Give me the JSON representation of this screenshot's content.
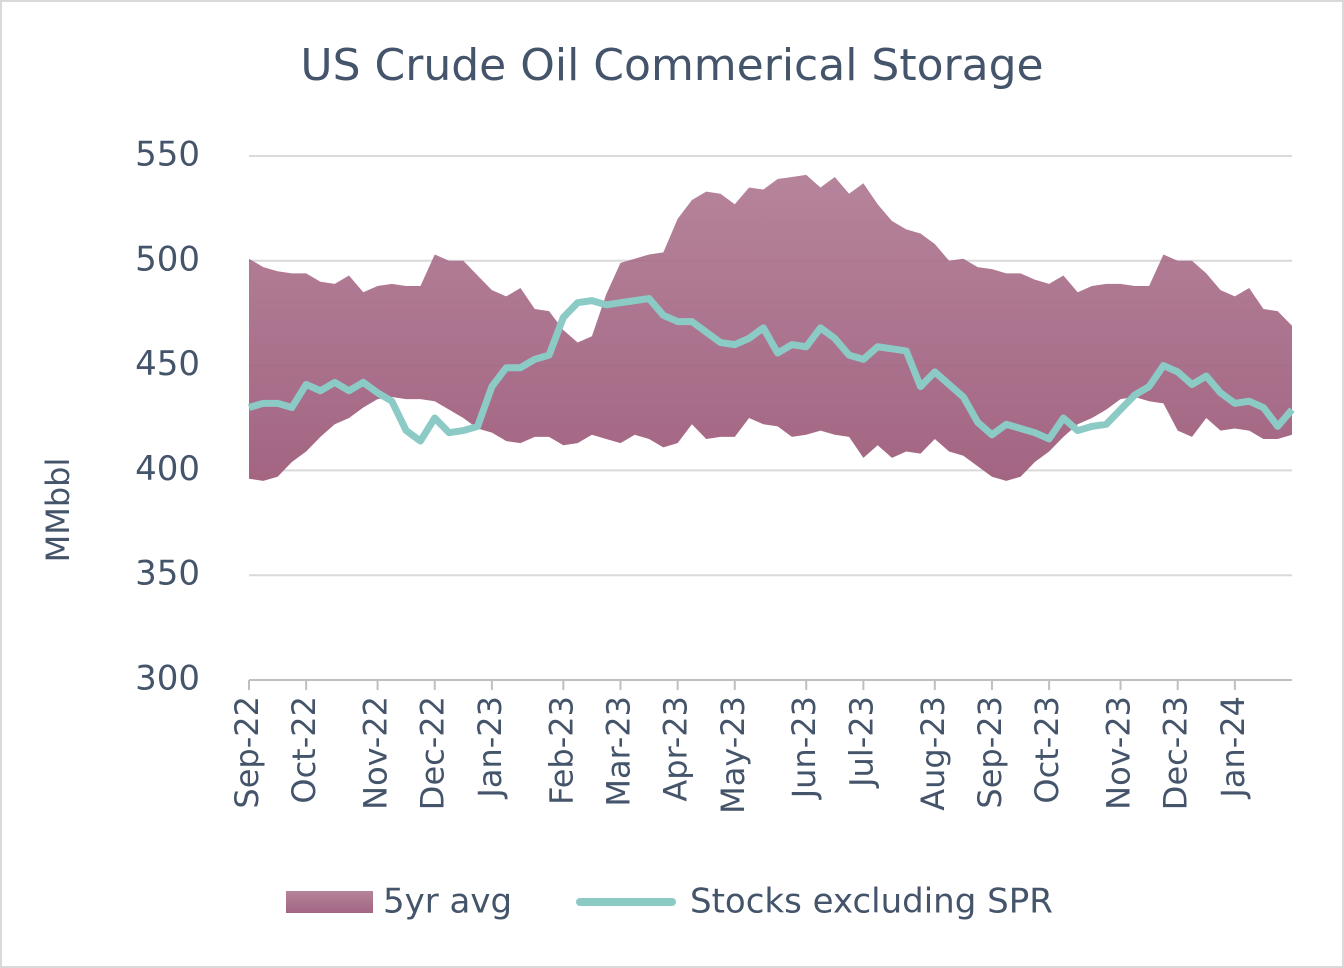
{
  "chart_data": {
    "type": "line",
    "title": "US Crude Oil Commerical Storage",
    "y_label": "MMbbl",
    "categories": [
      "Sep-22",
      null,
      null,
      null,
      "Oct-22",
      null,
      null,
      null,
      null,
      "Nov-22",
      null,
      null,
      null,
      "Dec-22",
      null,
      null,
      null,
      "Jan-23",
      null,
      null,
      null,
      null,
      "Feb-23",
      null,
      null,
      null,
      "Mar-23",
      null,
      null,
      null,
      "Apr-23",
      null,
      null,
      null,
      "May-23",
      null,
      null,
      null,
      null,
      "Jun-23",
      null,
      null,
      null,
      "Jul-23",
      null,
      null,
      null,
      null,
      "Aug-23",
      null,
      null,
      null,
      "Sep-23",
      null,
      null,
      null,
      "Oct-23",
      null,
      null,
      null,
      null,
      "Nov-23",
      null,
      null,
      null,
      "Dec-23",
      null,
      null,
      null,
      "Jan-24",
      null,
      null,
      null,
      null
    ],
    "band": {
      "name": "5yr avg",
      "color": "#a36582",
      "upper": [
        501,
        497,
        495,
        494,
        494,
        490,
        489,
        493,
        485,
        488,
        489,
        488,
        488,
        503,
        500,
        500,
        493,
        486,
        483,
        487,
        477,
        476,
        467,
        461,
        464,
        484,
        499,
        501,
        503,
        504,
        520,
        529,
        533,
        532,
        527,
        535,
        534,
        539,
        540,
        541,
        535,
        540,
        532,
        537,
        527,
        519,
        515,
        513,
        508,
        500,
        501,
        497,
        496,
        494,
        494,
        491,
        489,
        493,
        485,
        488,
        489,
        489,
        488,
        488,
        503,
        500,
        500,
        494,
        486,
        483,
        487,
        477,
        476,
        469
      ],
      "lower": [
        396,
        395,
        397,
        404,
        409,
        416,
        422,
        425,
        430,
        434,
        435,
        434,
        434,
        433,
        429,
        425,
        420,
        418,
        414,
        413,
        416,
        416,
        412,
        413,
        417,
        415,
        413,
        417,
        415,
        411,
        413,
        422,
        415,
        416,
        416,
        425,
        422,
        421,
        416,
        417,
        419,
        417,
        416,
        406,
        412,
        406,
        409,
        408,
        415,
        409,
        407,
        402,
        397,
        395,
        397,
        404,
        409,
        416,
        422,
        425,
        429,
        434,
        435,
        433,
        432,
        419,
        416,
        425,
        419,
        420,
        419,
        415,
        415,
        417
      ]
    },
    "series": [
      {
        "name": "Stocks excluding SPR",
        "color": "#8ccac6",
        "values": [
          430,
          432,
          432,
          430,
          441,
          438,
          442,
          438,
          442,
          437,
          433,
          419,
          414,
          425,
          418,
          419,
          421,
          440,
          449,
          449,
          453,
          455,
          473,
          480,
          481,
          479,
          480,
          481,
          482,
          474,
          471,
          471,
          466,
          461,
          460,
          463,
          468,
          456,
          460,
          459,
          468,
          463,
          455,
          453,
          459,
          458,
          457,
          440,
          447,
          441,
          435,
          423,
          417,
          422,
          420,
          418,
          415,
          425,
          419,
          421,
          422,
          429,
          436,
          440,
          450,
          447,
          441,
          445,
          437,
          432,
          433,
          430,
          421,
          429
        ]
      }
    ],
    "ylim": [
      300,
      550
    ],
    "yticks": [
      300,
      350,
      400,
      450,
      500,
      550
    ],
    "grid": true,
    "legend": "bottom"
  }
}
